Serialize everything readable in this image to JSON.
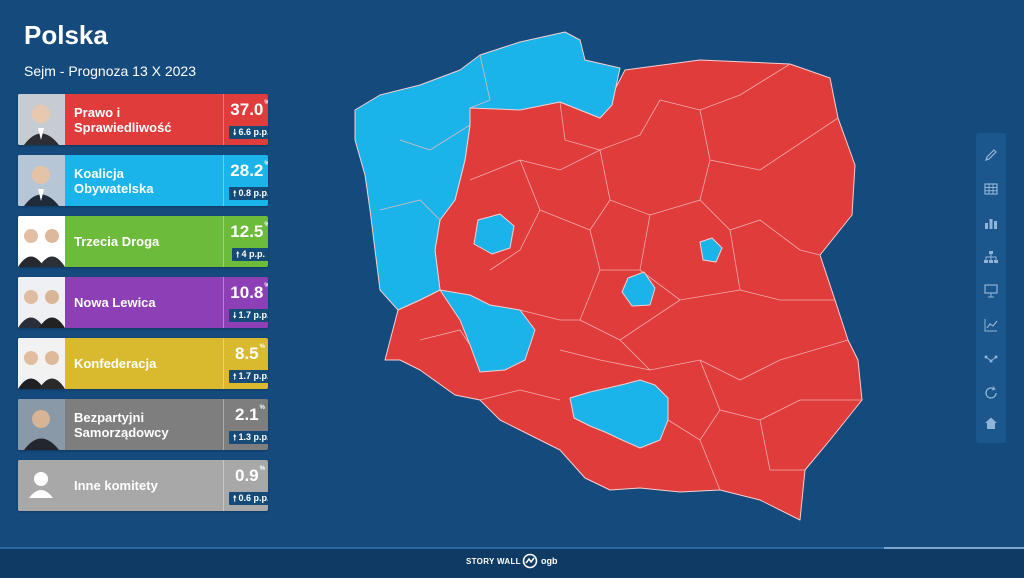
{
  "header": {
    "title": "Polska",
    "subtitle": "Sejm - Prognoza 13 X 2023"
  },
  "parties": [
    {
      "name": "Prawo i Sprawiedliwość",
      "name_line1": "Prawo i",
      "name_line2": "Sprawiedliwość",
      "percent": "37.0",
      "pct_symbol": "%",
      "delta": "6.6 p.p.",
      "delta_direction": "down",
      "color": "#e03c3c"
    },
    {
      "name": "Koalicja Obywatelska",
      "name_line1": "Koalicja",
      "name_line2": "Obywatelska",
      "percent": "28.2",
      "pct_symbol": "%",
      "delta": "0.8 p.p.",
      "delta_direction": "up",
      "color": "#1ab4eb"
    },
    {
      "name": "Trzecia Droga",
      "name_line1": "Trzecia Droga",
      "name_line2": "",
      "percent": "12.5",
      "pct_symbol": "%",
      "delta": "4 p.p.",
      "delta_direction": "up",
      "color": "#6cbb3a"
    },
    {
      "name": "Nowa Lewica",
      "name_line1": "Nowa Lewica",
      "name_line2": "",
      "percent": "10.8",
      "pct_symbol": "%",
      "delta": "1.7 p.p.",
      "delta_direction": "down",
      "color": "#8d3fb5"
    },
    {
      "name": "Konfederacja",
      "name_line1": "Konfederacja",
      "name_line2": "",
      "percent": "8.5",
      "pct_symbol": "%",
      "delta": "1.7 p.p.",
      "delta_direction": "up",
      "color": "#d9b92e"
    },
    {
      "name": "Bezpartyjni Samorządowcy",
      "name_line1": "Bezpartyjni",
      "name_line2": "Samorządowcy",
      "percent": "2.1",
      "pct_symbol": "%",
      "delta": "1.3 p.p.",
      "delta_direction": "up",
      "color": "#7e7e7e"
    },
    {
      "name": "Inne komitety",
      "name_line1": "Inne komitety",
      "name_line2": "",
      "percent": "0.9",
      "pct_symbol": "%",
      "delta": "0.6 p.p.",
      "delta_direction": "up",
      "color": "#a8a8a8"
    }
  ],
  "arrows": {
    "up": "🠕",
    "down": "🠗"
  },
  "map": {
    "winning_colors": {
      "pis": "#e03c3c",
      "ko": "#1ab4eb"
    },
    "border_color": "#f3c2c2"
  },
  "toolbar": {
    "icons": [
      "pen-icon",
      "table-icon",
      "bar-chart-icon",
      "hierarchy-icon",
      "presentation-icon",
      "line-chart-icon",
      "network-icon",
      "refresh-icon",
      "home-icon"
    ]
  },
  "footer": {
    "label": "STORY WALL",
    "brand": "ogb"
  }
}
